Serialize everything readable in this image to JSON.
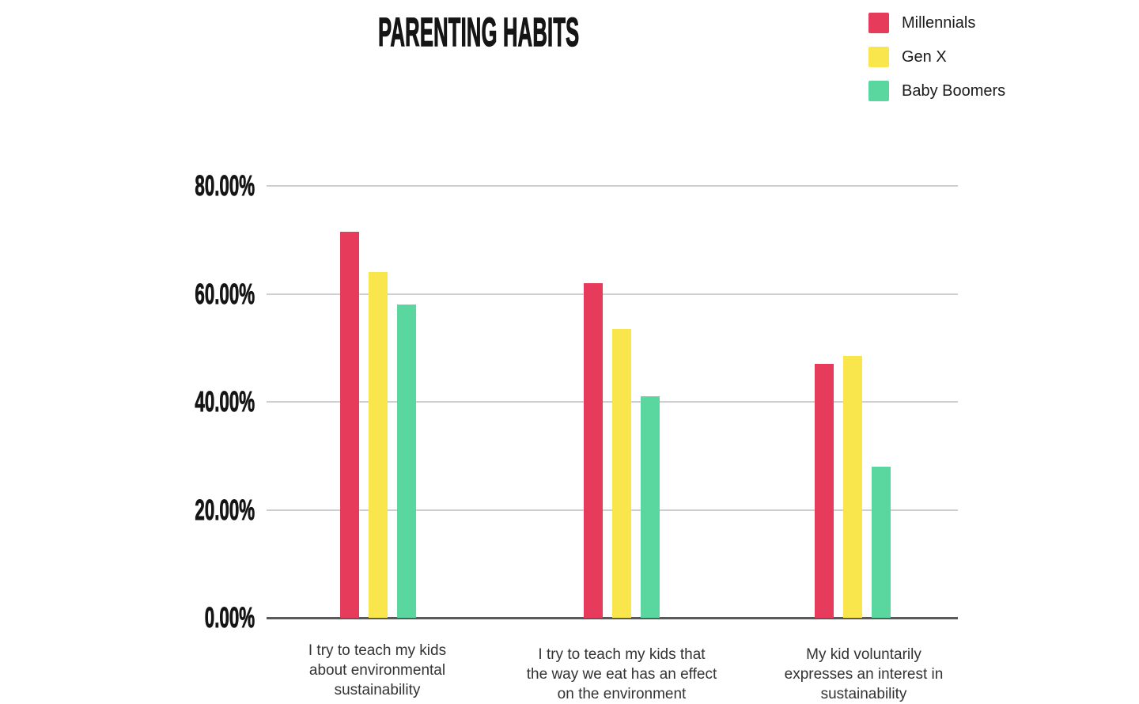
{
  "chart_data": {
    "type": "bar",
    "title": "PARENTING HABITS",
    "categories": [
      "I try to teach my kids\nabout environmental\nsustainability",
      "I try to teach my kids that\nthe way we eat has an effect\non the environment",
      "My kid voluntarily\nexpresses an interest in\nsustainability"
    ],
    "series": [
      {
        "name": "Millennials",
        "color": "#e73b5c",
        "values": [
          71.5,
          62,
          47
        ]
      },
      {
        "name": "Gen X",
        "color": "#f9e64c",
        "values": [
          64,
          53.5,
          48.5
        ]
      },
      {
        "name": "Baby Boomers",
        "color": "#59d79f",
        "values": [
          58,
          41,
          28
        ]
      }
    ],
    "yticks": [
      {
        "value": 0,
        "label": "0.00%"
      },
      {
        "value": 20,
        "label": "20.00%"
      },
      {
        "value": 40,
        "label": "40.00%"
      },
      {
        "value": 60,
        "label": "60.00%"
      },
      {
        "value": 80,
        "label": "80.00%"
      }
    ],
    "ylim": [
      0,
      80
    ],
    "ylabel": "",
    "xlabel": "",
    "grid": true,
    "legend_position": "top-right",
    "colors": {
      "grid": "#cfcfcf",
      "axis": "#5a5a5a",
      "heading_text": "#151515",
      "category_text": "#333333",
      "legend_text": "#1a1a1a",
      "background": "#ffffff"
    }
  }
}
